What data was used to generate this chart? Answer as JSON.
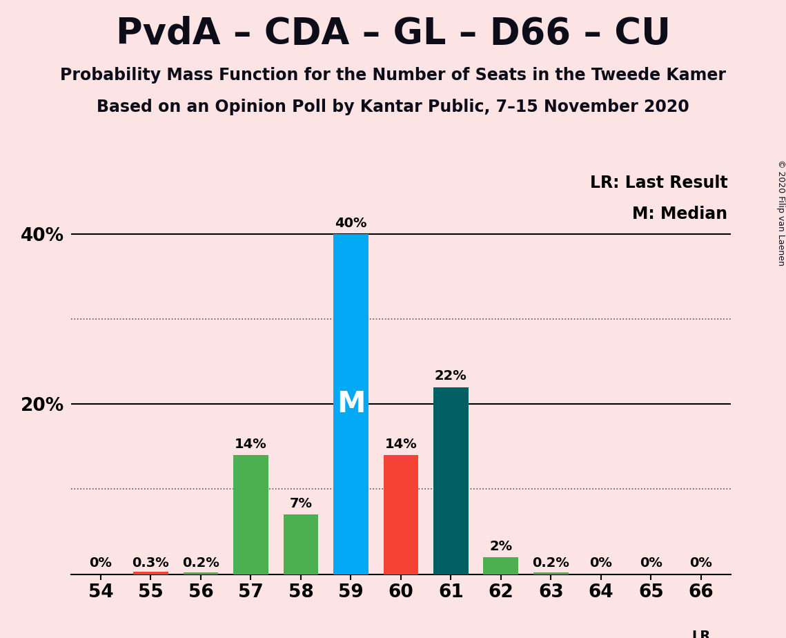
{
  "title": "PvdA – CDA – GL – D66 – CU",
  "subtitle1": "Probability Mass Function for the Number of Seats in the Tweede Kamer",
  "subtitle2": "Based on an Opinion Poll by Kantar Public, 7–15 November 2020",
  "copyright": "© 2020 Filip van Laenen",
  "categories": [
    54,
    55,
    56,
    57,
    58,
    59,
    60,
    61,
    62,
    63,
    64,
    65,
    66
  ],
  "values": [
    0.0,
    0.3,
    0.2,
    14.0,
    7.0,
    40.0,
    14.0,
    22.0,
    2.0,
    0.2,
    0.0,
    0.0,
    0.0
  ],
  "labels": [
    "0%",
    "0.3%",
    "0.2%",
    "14%",
    "7%",
    "40%",
    "14%",
    "22%",
    "2%",
    "0.2%",
    "0%",
    "0%",
    "0%"
  ],
  "colors": [
    "#4caf50",
    "#f44336",
    "#4caf50",
    "#4caf50",
    "#4caf50",
    "#03a9f4",
    "#f44336",
    "#006064",
    "#4caf50",
    "#4caf50",
    "#4caf50",
    "#4caf50",
    "#4caf50"
  ],
  "median_seat": 59,
  "median_label": "M",
  "lr_label": "LR",
  "lr_seat": 66,
  "legend_lr": "LR: Last Result",
  "legend_m": "M: Median",
  "background_color": "#fce4e4",
  "ylim": [
    0,
    45
  ],
  "yticks": [
    20,
    40
  ],
  "ytick_labels": [
    "20%",
    "40%"
  ],
  "solid_yticks": [
    20,
    40
  ],
  "dotted_yticks": [
    10,
    30
  ],
  "bar_width": 0.7,
  "label_fontsize": 14,
  "title_fontsize": 38,
  "subtitle_fontsize": 17,
  "tick_fontsize": 19,
  "legend_fontsize": 17,
  "copyright_fontsize": 9,
  "median_fontsize": 30
}
